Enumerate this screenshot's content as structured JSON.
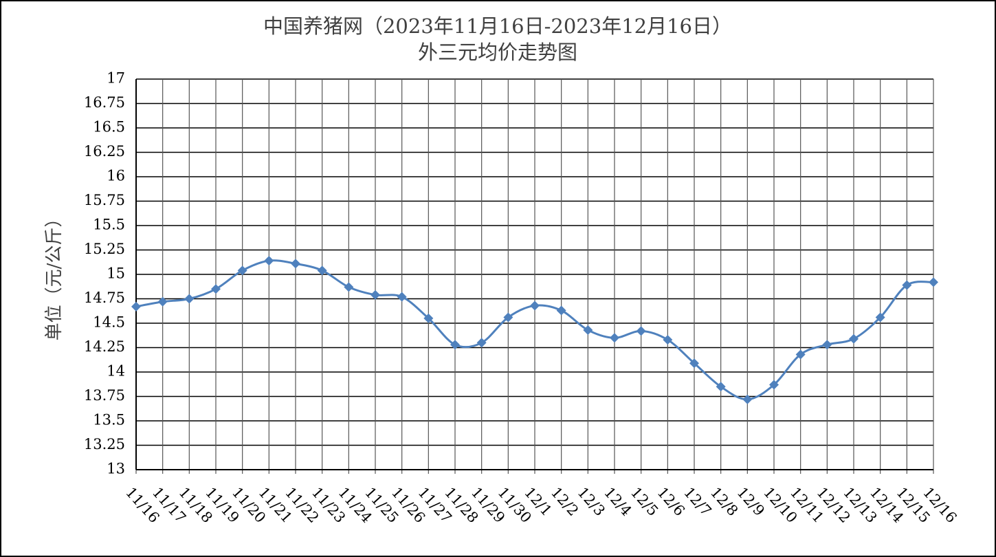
{
  "chart_data": {
    "type": "line",
    "title": "中国养猪网（2023年11月16日-2023年12月16日）",
    "subtitle": "外三元均价走势图",
    "y_label": "单位（元/公斤）",
    "categories": [
      "11/16",
      "11/17",
      "11/18",
      "11/19",
      "11/20",
      "11/21",
      "11/22",
      "11/23",
      "11/24",
      "11/25",
      "11/26",
      "11/27",
      "11/28",
      "11/29",
      "11/30",
      "12/1",
      "12/2",
      "12/3",
      "12/4",
      "12/5",
      "12/6",
      "12/7",
      "12/8",
      "12/9",
      "12/10",
      "12/11",
      "12/12",
      "12/13",
      "12/14",
      "12/15",
      "12/16"
    ],
    "series": [
      {
        "name": "外三元均价",
        "color": "#4f81bd",
        "values": [
          14.67,
          14.72,
          14.75,
          14.85,
          15.04,
          15.14,
          15.11,
          15.04,
          14.87,
          14.79,
          14.77,
          14.55,
          14.28,
          14.3,
          14.56,
          14.68,
          14.63,
          14.43,
          14.35,
          14.42,
          14.33,
          14.09,
          13.85,
          13.72,
          13.87,
          14.18,
          14.28,
          14.34,
          14.56,
          14.89,
          14.92
        ]
      }
    ],
    "ylim": [
      13,
      17
    ],
    "yticks": [
      13,
      13.25,
      13.5,
      13.75,
      14,
      14.25,
      14.5,
      14.75,
      15,
      15.25,
      15.5,
      15.75,
      16,
      16.25,
      16.5,
      16.75,
      17
    ],
    "grid": true
  }
}
